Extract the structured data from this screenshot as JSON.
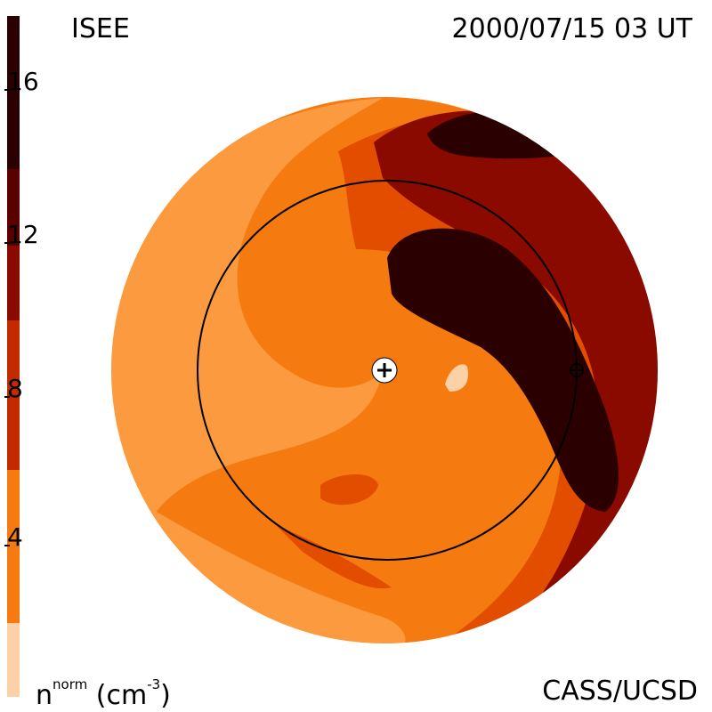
{
  "header": {
    "instrument": "ISEE",
    "timestamp": "2000/07/15 03 UT"
  },
  "footer": {
    "units_base": "n",
    "units_sup": "norm",
    "units_tail": " (cm",
    "units_exp": "-3",
    "units_close": ")",
    "credit": "CASS/UCSD"
  },
  "colorbar": {
    "ticks": [
      "16",
      "12",
      "8",
      "4"
    ],
    "colors": [
      "#2a0000",
      "#5a0000",
      "#8a0a00",
      "#c22a00",
      "#e24d00",
      "#f57a10",
      "#fb9a3e",
      "#fdd0a8"
    ]
  },
  "map": {
    "background_color": "#f57a10",
    "light_color": "#fb9a3e",
    "medium_color": "#e24d00",
    "dark_red_color": "#8a0a00",
    "darkest_color": "#2a0000",
    "pale_color": "#fdd0a8",
    "sun_marker": "+",
    "earth_marker": "⊕"
  }
}
